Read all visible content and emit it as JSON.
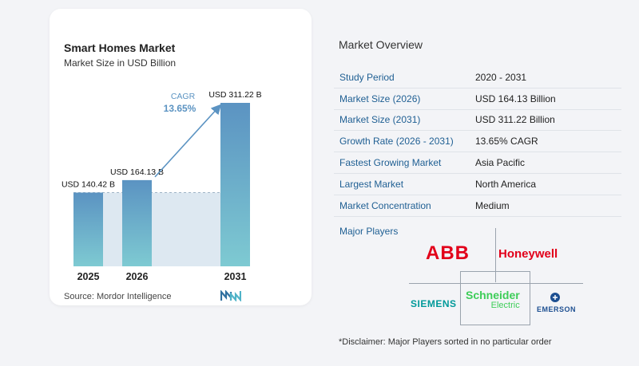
{
  "chart_data": {
    "type": "bar",
    "title": "Smart Homes Market",
    "subtitle": "Market Size in USD Billion",
    "categories": [
      "2025",
      "2026",
      "2031"
    ],
    "values": [
      140.42,
      164.13,
      311.22
    ],
    "data_labels": [
      "USD 140.42 B",
      "USD 164.13 B",
      "USD 311.22 B"
    ],
    "cagr_label": "CAGR",
    "cagr_value": "13.65%",
    "ylim": [
      0,
      311.22
    ],
    "colors": {
      "bar_top": "#5b93c2",
      "bar_bottom": "#7ecad2",
      "area": "#dde8f1",
      "arrow": "#5b93c2",
      "cagr_text": "#5b93c2"
    }
  },
  "source": "Source:  Mordor Intelligence",
  "overview": {
    "title": "Market Overview",
    "rows": [
      {
        "label": "Study Period",
        "value": "2020 - 2031"
      },
      {
        "label": "Market Size (2026)",
        "value": "USD 164.13 Billion"
      },
      {
        "label": "Market Size (2031)",
        "value": "USD 311.22 Billion"
      },
      {
        "label": "Growth Rate (2026 - 2031)",
        "value": "13.65% CAGR"
      },
      {
        "label": "Fastest Growing Market",
        "value": "Asia Pacific"
      },
      {
        "label": "Largest Market",
        "value": "North America"
      },
      {
        "label": "Market Concentration",
        "value": "Medium"
      }
    ]
  },
  "major_players": {
    "label": "Major Players",
    "logos": {
      "abb": "ABB",
      "honeywell": "Honeywell",
      "siemens": "SIEMENS",
      "schneider": "Schneider",
      "schneider_sub": "Electric",
      "emerson": "EMERSON"
    }
  },
  "disclaimer": "*Disclaimer: Major Players sorted in no particular order"
}
